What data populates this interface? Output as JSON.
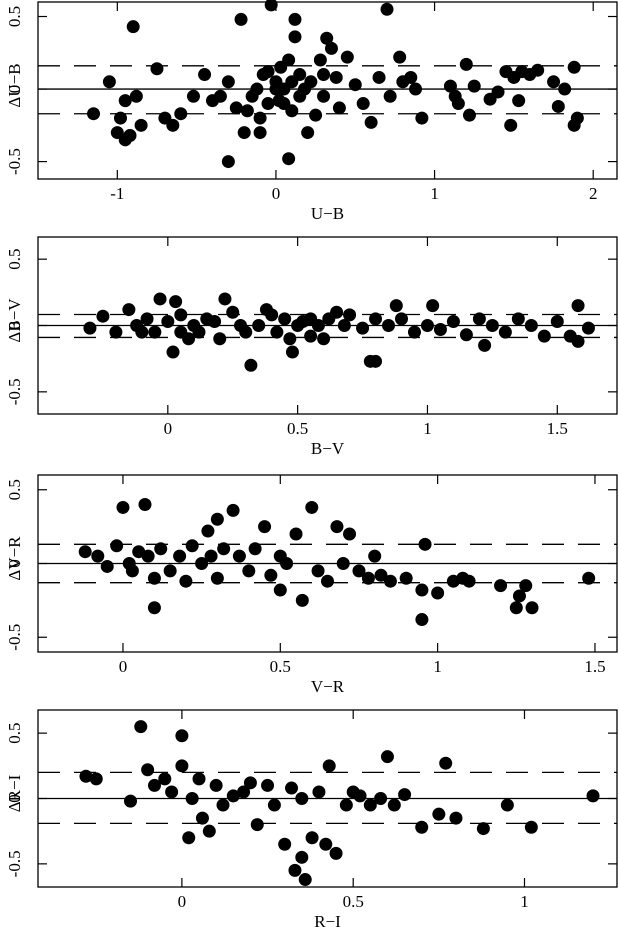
{
  "chart_data": [
    {
      "type": "scatter",
      "x_label": "U−B",
      "y_label": "ΔU−B",
      "color": "#000000",
      "xlim": [
        -1.5,
        2.15
      ],
      "ylim": [
        -0.62,
        0.6
      ],
      "xticks": [
        -1,
        0,
        1,
        2
      ],
      "yticks": [
        -0.5,
        0,
        0.5
      ],
      "hlines": [
        {
          "value": 0,
          "style": "solid"
        },
        {
          "value": 0.16,
          "style": "dashed"
        },
        {
          "value": -0.17,
          "style": "dashed"
        }
      ],
      "x": [
        -1.15,
        -1.05,
        -1.0,
        -0.98,
        -0.95,
        -0.92,
        -0.9,
        -0.88,
        -0.85,
        -0.95,
        -0.75,
        -0.7,
        -0.65,
        -0.6,
        -0.52,
        -0.45,
        -0.4,
        -0.35,
        -0.3,
        -0.3,
        -0.25,
        -0.22,
        -0.2,
        -0.18,
        -0.15,
        -0.12,
        -0.1,
        -0.1,
        -0.08,
        -0.05,
        -0.05,
        -0.03,
        0.0,
        0.0,
        0.02,
        0.03,
        0.05,
        0.05,
        0.08,
        0.08,
        0.1,
        0.1,
        0.12,
        0.12,
        0.15,
        0.15,
        0.18,
        0.2,
        0.22,
        0.25,
        0.28,
        0.3,
        0.3,
        0.32,
        0.35,
        0.38,
        0.4,
        0.45,
        0.5,
        0.55,
        0.6,
        0.65,
        0.7,
        0.72,
        0.78,
        0.8,
        0.85,
        0.88,
        0.92,
        1.1,
        1.13,
        1.15,
        1.2,
        1.22,
        1.25,
        1.35,
        1.4,
        1.45,
        1.48,
        1.5,
        1.53,
        1.55,
        1.6,
        1.65,
        1.75,
        1.78,
        1.82,
        1.88,
        1.88,
        1.9
      ],
      "y": [
        -0.17,
        0.05,
        -0.3,
        -0.2,
        -0.35,
        -0.32,
        0.43,
        -0.05,
        -0.25,
        -0.08,
        0.14,
        -0.2,
        -0.25,
        -0.17,
        -0.05,
        0.1,
        -0.08,
        -0.05,
        0.05,
        -0.5,
        -0.13,
        0.48,
        -0.3,
        -0.15,
        -0.05,
        0.0,
        -0.3,
        -0.2,
        0.1,
        0.12,
        -0.1,
        0.58,
        0.0,
        0.05,
        -0.08,
        0.15,
        0.0,
        -0.1,
        0.2,
        -0.48,
        0.05,
        -0.15,
        0.48,
        0.36,
        0.1,
        -0.05,
        0.0,
        -0.3,
        0.05,
        -0.18,
        0.2,
        0.1,
        -0.05,
        0.35,
        0.28,
        0.08,
        -0.13,
        0.22,
        0.03,
        -0.1,
        -0.23,
        0.08,
        0.55,
        -0.05,
        0.22,
        0.05,
        0.08,
        0.0,
        -0.2,
        0.02,
        -0.05,
        -0.1,
        0.17,
        -0.18,
        0.02,
        -0.07,
        -0.02,
        0.12,
        -0.25,
        0.08,
        -0.08,
        0.12,
        0.1,
        0.13,
        0.05,
        -0.12,
        0.0,
        0.15,
        -0.25,
        -0.2
      ]
    },
    {
      "type": "scatter",
      "x_label": "B−V",
      "y_label": "ΔB−V",
      "color": "#000000",
      "xlim": [
        -0.5,
        1.73
      ],
      "ylim": [
        -0.667,
        0.667
      ],
      "xticks": [
        0,
        0.5,
        1,
        1.5
      ],
      "yticks": [
        -0.5,
        0,
        0.5
      ],
      "hlines": [
        {
          "value": 0,
          "style": "solid"
        },
        {
          "value": 0.083,
          "style": "dashed"
        },
        {
          "value": -0.09,
          "style": "dashed"
        }
      ],
      "x": [
        -0.3,
        -0.25,
        -0.2,
        -0.15,
        -0.12,
        -0.1,
        -0.08,
        -0.05,
        -0.03,
        0.0,
        0.02,
        0.03,
        0.05,
        0.05,
        0.08,
        0.1,
        0.12,
        0.15,
        0.18,
        0.2,
        0.22,
        0.25,
        0.28,
        0.3,
        0.32,
        0.35,
        0.38,
        0.4,
        0.42,
        0.45,
        0.47,
        0.48,
        0.5,
        0.52,
        0.55,
        0.55,
        0.58,
        0.6,
        0.62,
        0.65,
        0.68,
        0.7,
        0.75,
        0.78,
        0.8,
        0.8,
        0.85,
        0.88,
        0.9,
        0.95,
        1.0,
        1.02,
        1.05,
        1.1,
        1.15,
        1.2,
        1.22,
        1.25,
        1.3,
        1.35,
        1.4,
        1.45,
        1.5,
        1.55,
        1.58,
        1.58,
        1.62
      ],
      "y": [
        -0.02,
        0.07,
        -0.05,
        0.12,
        0.0,
        -0.05,
        0.05,
        -0.05,
        0.2,
        0.03,
        -0.2,
        0.18,
        -0.05,
        0.08,
        -0.1,
        0.0,
        -0.05,
        0.05,
        0.03,
        -0.1,
        0.2,
        0.1,
        0.0,
        -0.05,
        -0.3,
        0.0,
        0.12,
        0.08,
        -0.05,
        0.05,
        -0.1,
        -0.2,
        0.0,
        0.03,
        -0.08,
        0.05,
        0.0,
        -0.1,
        0.05,
        0.1,
        0.0,
        0.08,
        -0.02,
        -0.27,
        0.05,
        -0.27,
        0.0,
        0.15,
        0.05,
        -0.05,
        0.0,
        0.15,
        -0.03,
        0.03,
        -0.07,
        0.05,
        -0.15,
        0.0,
        -0.05,
        0.05,
        0.0,
        -0.08,
        0.03,
        -0.08,
        0.15,
        -0.12,
        -0.02
      ]
    },
    {
      "type": "scatter",
      "x_label": "V−R",
      "y_label": "ΔV−R",
      "color": "#000000",
      "xlim": [
        -0.27,
        1.57
      ],
      "ylim": [
        -0.6,
        0.6
      ],
      "xticks": [
        0,
        0.5,
        1,
        1.5
      ],
      "yticks": [
        -0.5,
        0,
        0.5
      ],
      "hlines": [
        {
          "value": 0,
          "style": "solid"
        },
        {
          "value": 0.13,
          "style": "dashed"
        },
        {
          "value": -0.13,
          "style": "dashed"
        }
      ],
      "x": [
        -0.12,
        -0.08,
        -0.05,
        -0.02,
        0.0,
        0.02,
        0.03,
        0.05,
        0.07,
        0.08,
        0.1,
        0.1,
        0.12,
        0.15,
        0.18,
        0.2,
        0.22,
        0.25,
        0.27,
        0.28,
        0.3,
        0.3,
        0.32,
        0.35,
        0.37,
        0.4,
        0.42,
        0.45,
        0.47,
        0.5,
        0.5,
        0.52,
        0.55,
        0.57,
        0.6,
        0.62,
        0.65,
        0.68,
        0.7,
        0.72,
        0.75,
        0.78,
        0.8,
        0.82,
        0.85,
        0.9,
        0.95,
        0.95,
        0.96,
        1.0,
        1.05,
        1.08,
        1.1,
        1.2,
        1.25,
        1.26,
        1.28,
        1.3,
        1.48
      ],
      "y": [
        0.08,
        0.05,
        -0.02,
        0.12,
        0.38,
        0.0,
        -0.05,
        0.08,
        0.4,
        0.05,
        -0.1,
        -0.3,
        0.1,
        -0.05,
        0.05,
        -0.12,
        0.12,
        0.0,
        0.22,
        0.05,
        0.3,
        -0.1,
        0.1,
        0.36,
        0.05,
        -0.05,
        0.1,
        0.25,
        -0.08,
        0.05,
        -0.18,
        0.0,
        0.2,
        -0.25,
        0.38,
        -0.05,
        -0.12,
        0.25,
        0.0,
        0.2,
        -0.05,
        -0.1,
        0.05,
        -0.08,
        -0.12,
        -0.1,
        -0.18,
        -0.38,
        0.13,
        -0.2,
        -0.12,
        -0.1,
        -0.12,
        -0.15,
        -0.3,
        -0.22,
        -0.15,
        -0.3,
        -0.1
      ]
    },
    {
      "type": "scatter",
      "x_label": "R−I",
      "y_label": "ΔR−I",
      "color": "#000000",
      "xlim": [
        -0.42,
        1.27
      ],
      "ylim": [
        -0.677,
        0.677
      ],
      "xticks": [
        0,
        0.5,
        1
      ],
      "yticks": [
        -0.5,
        0,
        0.5
      ],
      "hlines": [
        {
          "value": 0,
          "style": "solid"
        },
        {
          "value": 0.2,
          "style": "dashed"
        },
        {
          "value": -0.19,
          "style": "dashed"
        }
      ],
      "x": [
        -0.28,
        -0.25,
        -0.15,
        -0.12,
        -0.1,
        -0.08,
        -0.05,
        -0.03,
        0.0,
        0.0,
        0.02,
        0.03,
        0.05,
        0.06,
        0.08,
        0.1,
        0.12,
        0.15,
        0.18,
        0.2,
        0.22,
        0.25,
        0.27,
        0.3,
        0.32,
        0.33,
        0.35,
        0.35,
        0.36,
        0.38,
        0.4,
        0.42,
        0.43,
        0.45,
        0.48,
        0.5,
        0.52,
        0.55,
        0.58,
        0.6,
        0.62,
        0.65,
        0.7,
        0.75,
        0.77,
        0.8,
        0.88,
        0.95,
        1.02,
        1.2
      ],
      "y": [
        0.17,
        0.15,
        -0.02,
        0.55,
        0.22,
        0.1,
        0.15,
        0.05,
        0.48,
        0.25,
        -0.3,
        0.0,
        0.15,
        -0.15,
        -0.25,
        0.1,
        -0.05,
        0.02,
        0.05,
        0.12,
        -0.2,
        0.1,
        -0.05,
        -0.35,
        0.08,
        -0.55,
        -0.45,
        0.0,
        -0.62,
        -0.3,
        0.05,
        -0.35,
        0.25,
        -0.42,
        -0.05,
        0.05,
        0.02,
        -0.05,
        0.0,
        0.32,
        -0.05,
        0.03,
        -0.22,
        -0.12,
        0.27,
        -0.15,
        -0.23,
        -0.05,
        -0.22,
        0.02
      ]
    }
  ]
}
